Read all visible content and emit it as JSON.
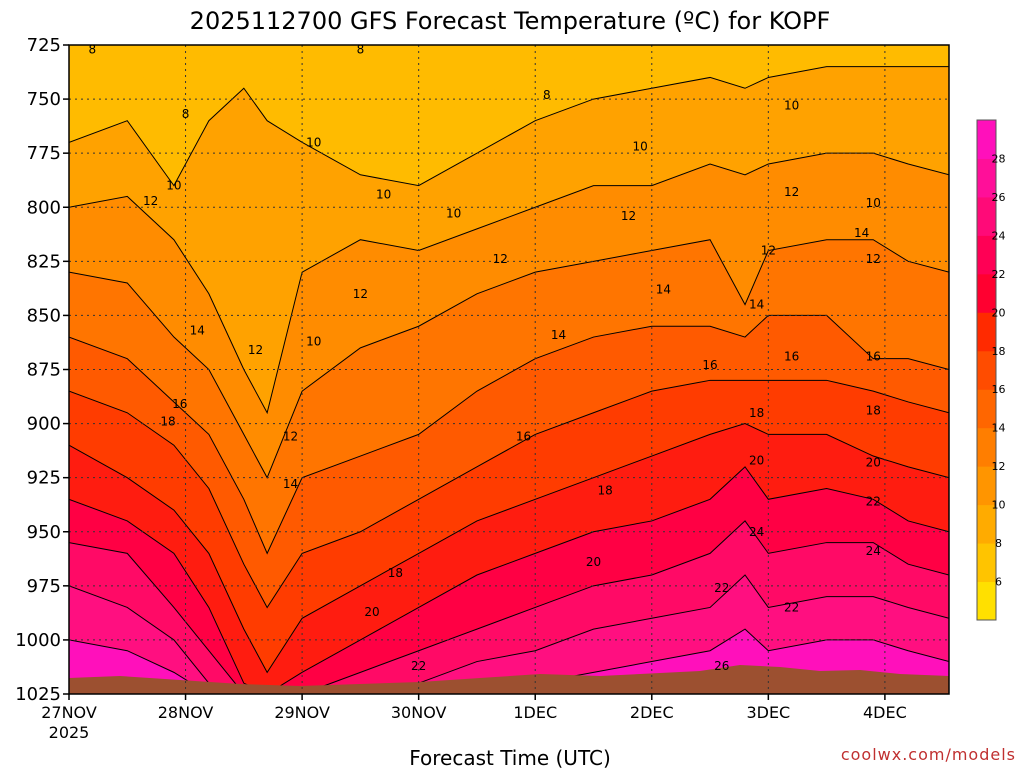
{
  "chart_data": {
    "type": "heatmap",
    "title": "2025112700 GFS Forecast Temperature (ºC) for KOPF",
    "xlabel": "Forecast Time (UTC)",
    "ylabel": "",
    "credit": "coolwx.com/models",
    "y_axis": {
      "ticks": [
        "725",
        "750",
        "775",
        "800",
        "825",
        "850",
        "875",
        "900",
        "925",
        "950",
        "975",
        "1000",
        "1025"
      ],
      "range": [
        725,
        1025
      ],
      "inverted": true
    },
    "x_axis": {
      "ticks": [
        "27NOV",
        "28NOV",
        "29NOV",
        "30NOV",
        "1DEC",
        "2DEC",
        "3DEC",
        "4DEC"
      ],
      "year_label": "2025",
      "range_days": [
        0,
        7.55
      ]
    },
    "colorbar": {
      "ticks": [
        "6",
        "8",
        "10",
        "12",
        "14",
        "16",
        "18",
        "20",
        "22",
        "24",
        "26",
        "28"
      ],
      "levels": [
        4,
        6,
        8,
        10,
        12,
        14,
        16,
        18,
        20,
        22,
        24,
        26,
        28,
        30
      ]
    },
    "contour_labels": [
      {
        "text": "8",
        "day": 0.2,
        "p": 727
      },
      {
        "text": "8",
        "day": 2.5,
        "p": 727
      },
      {
        "text": "8",
        "day": 1.0,
        "p": 757
      },
      {
        "text": "8",
        "day": 4.1,
        "p": 748
      },
      {
        "text": "10",
        "day": 0.9,
        "p": 790
      },
      {
        "text": "10",
        "day": 2.1,
        "p": 770
      },
      {
        "text": "10",
        "day": 2.7,
        "p": 794
      },
      {
        "text": "10",
        "day": 3.3,
        "p": 803
      },
      {
        "text": "10",
        "day": 4.9,
        "p": 772
      },
      {
        "text": "10",
        "day": 6.2,
        "p": 753
      },
      {
        "text": "10",
        "day": 6.9,
        "p": 798
      },
      {
        "text": "10",
        "day": 2.1,
        "p": 862
      },
      {
        "text": "12",
        "day": 0.7,
        "p": 797
      },
      {
        "text": "12",
        "day": 3.7,
        "p": 824
      },
      {
        "text": "12",
        "day": 4.8,
        "p": 804
      },
      {
        "text": "12",
        "day": 6.2,
        "p": 793
      },
      {
        "text": "12",
        "day": 6.0,
        "p": 820
      },
      {
        "text": "12",
        "day": 6.9,
        "p": 824
      },
      {
        "text": "12",
        "day": 2.5,
        "p": 840
      },
      {
        "text": "12",
        "day": 1.6,
        "p": 866
      },
      {
        "text": "12",
        "day": 1.9,
        "p": 906
      },
      {
        "text": "14",
        "day": 1.1,
        "p": 857
      },
      {
        "text": "14",
        "day": 4.2,
        "p": 859
      },
      {
        "text": "14",
        "day": 5.1,
        "p": 838
      },
      {
        "text": "14",
        "day": 5.9,
        "p": 845
      },
      {
        "text": "14",
        "day": 6.8,
        "p": 812
      },
      {
        "text": "14",
        "day": 1.9,
        "p": 928
      },
      {
        "text": "16",
        "day": 0.95,
        "p": 891
      },
      {
        "text": "16",
        "day": 3.9,
        "p": 906
      },
      {
        "text": "16",
        "day": 5.5,
        "p": 873
      },
      {
        "text": "16",
        "day": 6.2,
        "p": 869
      },
      {
        "text": "16",
        "day": 6.9,
        "p": 869
      },
      {
        "text": "18",
        "day": 0.85,
        "p": 899
      },
      {
        "text": "18",
        "day": 4.6,
        "p": 931
      },
      {
        "text": "18",
        "day": 2.8,
        "p": 969
      },
      {
        "text": "18",
        "day": 5.9,
        "p": 895
      },
      {
        "text": "18",
        "day": 6.9,
        "p": 894
      },
      {
        "text": "20",
        "day": 2.6,
        "p": 987
      },
      {
        "text": "20",
        "day": 4.5,
        "p": 964
      },
      {
        "text": "20",
        "day": 5.9,
        "p": 917
      },
      {
        "text": "20",
        "day": 6.9,
        "p": 918
      },
      {
        "text": "22",
        "day": 3.0,
        "p": 1012
      },
      {
        "text": "22",
        "day": 5.6,
        "p": 976
      },
      {
        "text": "22",
        "day": 6.2,
        "p": 985
      },
      {
        "text": "22",
        "day": 6.9,
        "p": 936
      },
      {
        "text": "24",
        "day": 5.9,
        "p": 950
      },
      {
        "text": "24",
        "day": 6.9,
        "p": 959
      },
      {
        "text": "26",
        "day": 5.6,
        "p": 1012
      }
    ]
  }
}
